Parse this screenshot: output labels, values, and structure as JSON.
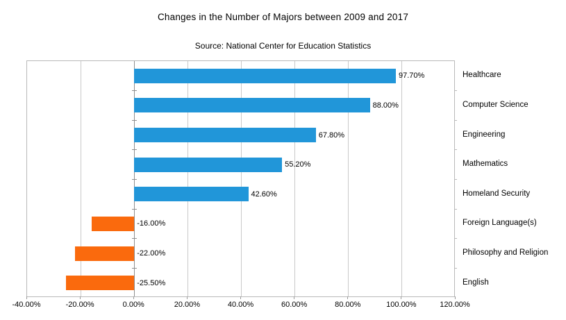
{
  "chart_data": {
    "type": "bar",
    "orientation": "horizontal",
    "title": "Changes in the Number of Majors between 2009 and 2017",
    "subtitle": "Source: National Center for Education Statistics",
    "categories": [
      "Healthcare",
      "Computer Science",
      "Engineering",
      "Mathematics",
      "Homeland Security",
      "Foreign Language(s)",
      "Philosophy and Religion",
      "English"
    ],
    "values": [
      97.7,
      88.0,
      67.8,
      55.2,
      42.6,
      -16.0,
      -22.0,
      -25.5
    ],
    "value_labels": [
      "97.70%",
      "88.00%",
      "67.80%",
      "55.20%",
      "42.60%",
      "-16.00%",
      "-22.00%",
      "-25.50%"
    ],
    "xlabel": "",
    "ylabel": "",
    "xlim": [
      -40,
      120
    ],
    "x_tick_step": 20,
    "x_tick_labels": [
      "-40.00%",
      "-20.00%",
      "0.00%",
      "20.00%",
      "40.00%",
      "60.00%",
      "80.00%",
      "100.00%",
      "120.00%"
    ],
    "grid": true,
    "legend": "none",
    "positive_color": "#2196d9",
    "negative_color": "#fa6a0d",
    "gridline_color": "#c9c9c9",
    "axis_line_color": "#8e8e8e",
    "text_color": "#000000"
  }
}
